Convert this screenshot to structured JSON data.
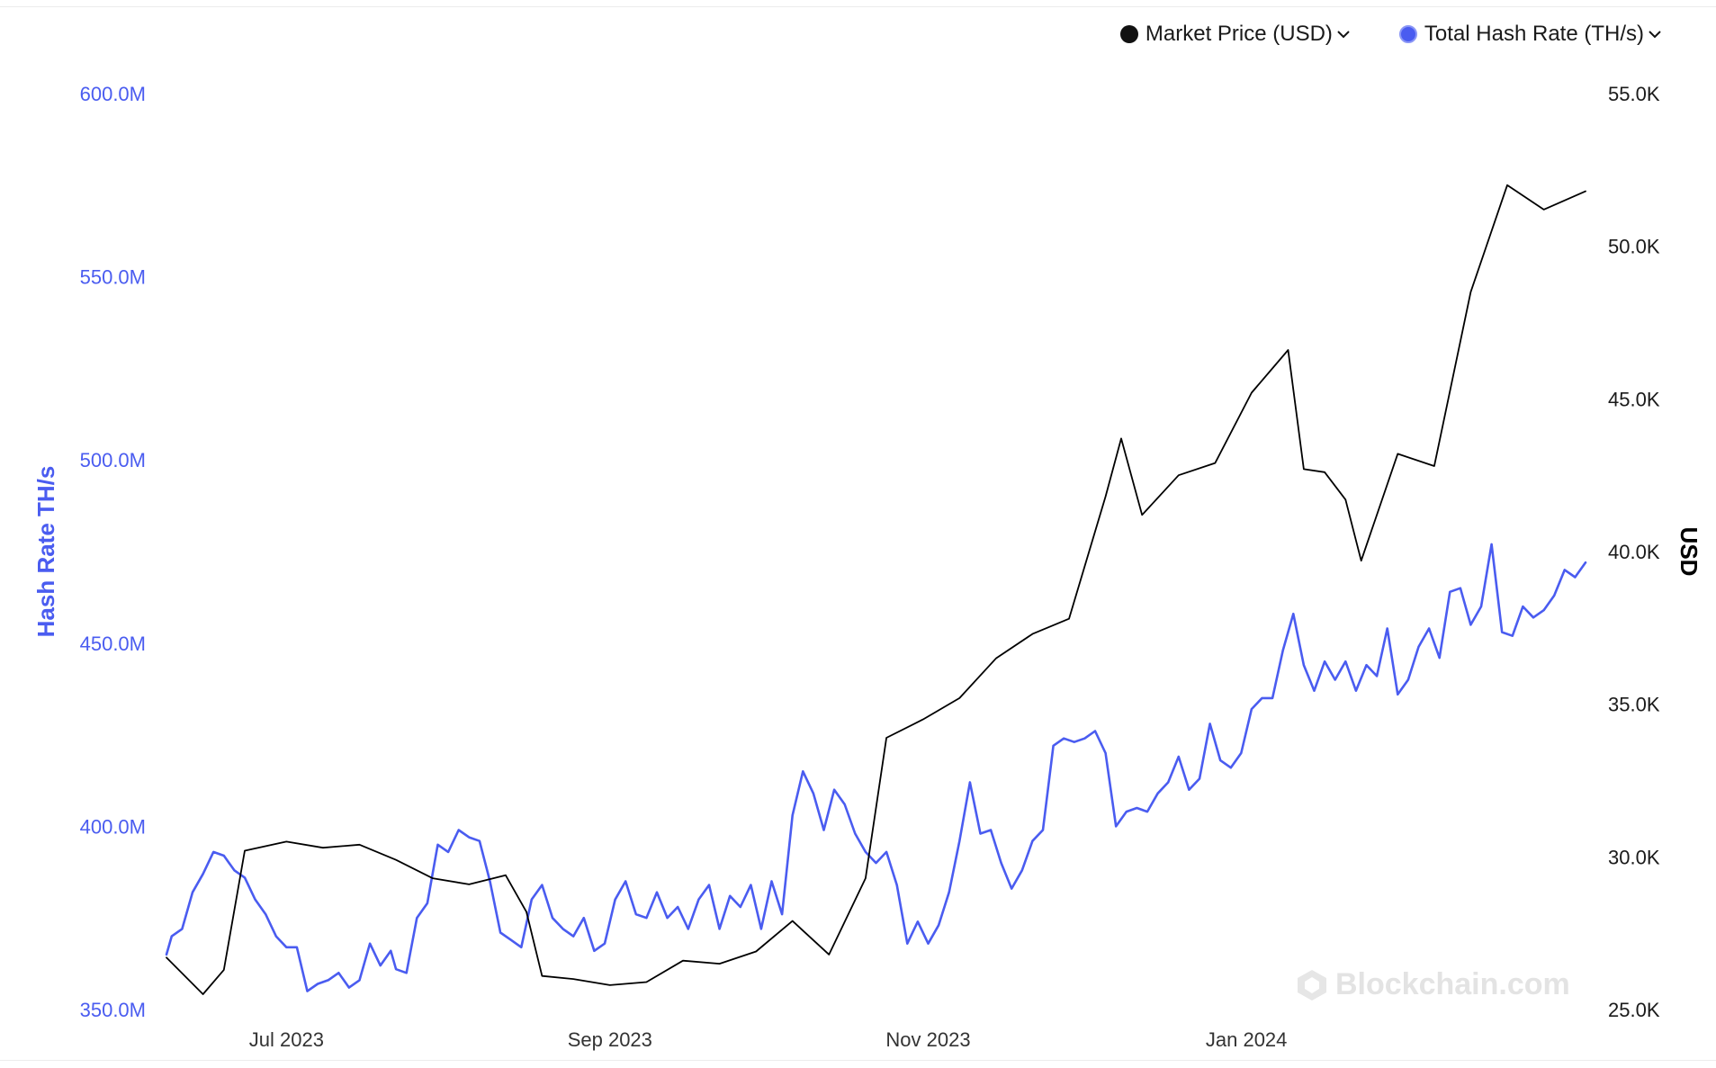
{
  "legend": {
    "items": [
      {
        "label": "Market Price (USD)",
        "chevron": "⌄",
        "color": "#000000",
        "icon": "chevron-down-icon"
      },
      {
        "label": "Total Hash Rate (TH/s)",
        "chevron": "⌄",
        "color": "#4a5cf0",
        "icon": "chevron-down-icon"
      }
    ]
  },
  "watermark": {
    "text": "Blockchain.com",
    "icon": "blockchain-logo-icon"
  },
  "colors": {
    "hash": "#4a5cf0",
    "price": "#000000",
    "axis_left": "#4a5cf0",
    "axis_right": "#1a1a1a"
  },
  "chart_data": {
    "type": "line",
    "ylabel_left": "Hash Rate TH/s",
    "ylabel_right": "USD",
    "x_ticks": [
      "Jul 2023",
      "Sep 2023",
      "Nov 2023",
      "Jan 2024"
    ],
    "x_tick_dates": [
      "2023-07-01",
      "2023-09-01",
      "2023-11-01",
      "2024-01-01"
    ],
    "x_range": [
      "2023-06-08",
      "2024-03-06"
    ],
    "y_left_ticks": [
      "350.0M",
      "400.0M",
      "450.0M",
      "500.0M",
      "550.0M",
      "600.0M"
    ],
    "y_left_range": [
      350000000,
      600000000
    ],
    "y_right_ticks": [
      "25.0K",
      "30.0K",
      "35.0K",
      "40.0K",
      "45.0K",
      "50.0K",
      "55.0K"
    ],
    "y_right_range": [
      25000,
      55000
    ],
    "grid": false,
    "legend_position": "top-right",
    "series": [
      {
        "name": "Total Hash Rate (TH/s)",
        "axis": "left",
        "points": [
          [
            "2023-06-08",
            365000000
          ],
          [
            "2023-06-09",
            370000000
          ],
          [
            "2023-06-11",
            372000000
          ],
          [
            "2023-06-13",
            382000000
          ],
          [
            "2023-06-15",
            387000000
          ],
          [
            "2023-06-17",
            393000000
          ],
          [
            "2023-06-19",
            392000000
          ],
          [
            "2023-06-21",
            388000000
          ],
          [
            "2023-06-23",
            386000000
          ],
          [
            "2023-06-25",
            380000000
          ],
          [
            "2023-06-27",
            376000000
          ],
          [
            "2023-06-29",
            370000000
          ],
          [
            "2023-07-01",
            367000000
          ],
          [
            "2023-07-03",
            367000000
          ],
          [
            "2023-07-05",
            355000000
          ],
          [
            "2023-07-07",
            357000000
          ],
          [
            "2023-07-09",
            358000000
          ],
          [
            "2023-07-11",
            360000000
          ],
          [
            "2023-07-13",
            356000000
          ],
          [
            "2023-07-15",
            358000000
          ],
          [
            "2023-07-17",
            368000000
          ],
          [
            "2023-07-19",
            362000000
          ],
          [
            "2023-07-21",
            366000000
          ],
          [
            "2023-07-22",
            361000000
          ],
          [
            "2023-07-24",
            360000000
          ],
          [
            "2023-07-26",
            375000000
          ],
          [
            "2023-07-28",
            379000000
          ],
          [
            "2023-07-30",
            395000000
          ],
          [
            "2023-08-01",
            393000000
          ],
          [
            "2023-08-03",
            399000000
          ],
          [
            "2023-08-05",
            397000000
          ],
          [
            "2023-08-07",
            396000000
          ],
          [
            "2023-08-09",
            385000000
          ],
          [
            "2023-08-11",
            371000000
          ],
          [
            "2023-08-13",
            369000000
          ],
          [
            "2023-08-15",
            367000000
          ],
          [
            "2023-08-17",
            380000000
          ],
          [
            "2023-08-19",
            384000000
          ],
          [
            "2023-08-21",
            375000000
          ],
          [
            "2023-08-23",
            372000000
          ],
          [
            "2023-08-25",
            370000000
          ],
          [
            "2023-08-27",
            375000000
          ],
          [
            "2023-08-29",
            366000000
          ],
          [
            "2023-08-31",
            368000000
          ],
          [
            "2023-09-02",
            380000000
          ],
          [
            "2023-09-04",
            385000000
          ],
          [
            "2023-09-06",
            376000000
          ],
          [
            "2023-09-08",
            375000000
          ],
          [
            "2023-09-10",
            382000000
          ],
          [
            "2023-09-12",
            375000000
          ],
          [
            "2023-09-14",
            378000000
          ],
          [
            "2023-09-16",
            372000000
          ],
          [
            "2023-09-18",
            380000000
          ],
          [
            "2023-09-20",
            384000000
          ],
          [
            "2023-09-22",
            372000000
          ],
          [
            "2023-09-24",
            381000000
          ],
          [
            "2023-09-26",
            378000000
          ],
          [
            "2023-09-28",
            384000000
          ],
          [
            "2023-09-30",
            372000000
          ],
          [
            "2023-10-02",
            385000000
          ],
          [
            "2023-10-04",
            376000000
          ],
          [
            "2023-10-06",
            403000000
          ],
          [
            "2023-10-08",
            415000000
          ],
          [
            "2023-10-10",
            409000000
          ],
          [
            "2023-10-12",
            399000000
          ],
          [
            "2023-10-14",
            410000000
          ],
          [
            "2023-10-16",
            406000000
          ],
          [
            "2023-10-18",
            398000000
          ],
          [
            "2023-10-20",
            393000000
          ],
          [
            "2023-10-22",
            390000000
          ],
          [
            "2023-10-24",
            393000000
          ],
          [
            "2023-10-26",
            384000000
          ],
          [
            "2023-10-28",
            368000000
          ],
          [
            "2023-10-30",
            374000000
          ],
          [
            "2023-11-01",
            368000000
          ],
          [
            "2023-11-03",
            373000000
          ],
          [
            "2023-11-05",
            382000000
          ],
          [
            "2023-11-07",
            396000000
          ],
          [
            "2023-11-09",
            412000000
          ],
          [
            "2023-11-11",
            398000000
          ],
          [
            "2023-11-13",
            399000000
          ],
          [
            "2023-11-15",
            390000000
          ],
          [
            "2023-11-17",
            383000000
          ],
          [
            "2023-11-19",
            388000000
          ],
          [
            "2023-11-21",
            396000000
          ],
          [
            "2023-11-23",
            399000000
          ],
          [
            "2023-11-25",
            422000000
          ],
          [
            "2023-11-27",
            424000000
          ],
          [
            "2023-11-29",
            423000000
          ],
          [
            "2023-12-01",
            424000000
          ],
          [
            "2023-12-03",
            426000000
          ],
          [
            "2023-12-05",
            420000000
          ],
          [
            "2023-12-07",
            400000000
          ],
          [
            "2023-12-09",
            404000000
          ],
          [
            "2023-12-11",
            405000000
          ],
          [
            "2023-12-13",
            404000000
          ],
          [
            "2023-12-15",
            409000000
          ],
          [
            "2023-12-17",
            412000000
          ],
          [
            "2023-12-19",
            419000000
          ],
          [
            "2023-12-21",
            410000000
          ],
          [
            "2023-12-23",
            413000000
          ],
          [
            "2023-12-25",
            428000000
          ],
          [
            "2023-12-27",
            418000000
          ],
          [
            "2023-12-29",
            416000000
          ],
          [
            "2023-12-31",
            420000000
          ],
          [
            "2024-01-02",
            432000000
          ],
          [
            "2024-01-04",
            435000000
          ],
          [
            "2024-01-06",
            435000000
          ],
          [
            "2024-01-08",
            448000000
          ],
          [
            "2024-01-10",
            458000000
          ],
          [
            "2024-01-12",
            444000000
          ],
          [
            "2024-01-14",
            437000000
          ],
          [
            "2024-01-16",
            445000000
          ],
          [
            "2024-01-18",
            440000000
          ],
          [
            "2024-01-20",
            445000000
          ],
          [
            "2024-01-22",
            437000000
          ],
          [
            "2024-01-24",
            444000000
          ],
          [
            "2024-01-26",
            441000000
          ],
          [
            "2024-01-28",
            454000000
          ],
          [
            "2024-01-30",
            436000000
          ],
          [
            "2024-02-01",
            440000000
          ],
          [
            "2024-02-03",
            449000000
          ],
          [
            "2024-02-05",
            454000000
          ],
          [
            "2024-02-07",
            446000000
          ],
          [
            "2024-02-09",
            464000000
          ],
          [
            "2024-02-11",
            465000000
          ],
          [
            "2024-02-13",
            455000000
          ],
          [
            "2024-02-15",
            460000000
          ],
          [
            "2024-02-17",
            477000000
          ],
          [
            "2024-02-19",
            453000000
          ],
          [
            "2024-02-21",
            452000000
          ],
          [
            "2024-02-23",
            460000000
          ],
          [
            "2024-02-25",
            457000000
          ],
          [
            "2024-02-27",
            459000000
          ],
          [
            "2024-02-29",
            463000000
          ],
          [
            "2024-03-02",
            470000000
          ],
          [
            "2024-03-04",
            468000000
          ],
          [
            "2024-03-06",
            472000000
          ]
        ]
      },
      {
        "name": "Market Price (USD)",
        "axis": "right",
        "points": [
          [
            "2023-06-08",
            26700
          ],
          [
            "2023-06-15",
            25500
          ],
          [
            "2023-06-19",
            26300
          ],
          [
            "2023-06-23",
            30200
          ],
          [
            "2023-07-01",
            30500
          ],
          [
            "2023-07-08",
            30300
          ],
          [
            "2023-07-15",
            30400
          ],
          [
            "2023-07-22",
            29900
          ],
          [
            "2023-07-29",
            29300
          ],
          [
            "2023-08-05",
            29100
          ],
          [
            "2023-08-12",
            29400
          ],
          [
            "2023-08-16",
            28200
          ],
          [
            "2023-08-19",
            26100
          ],
          [
            "2023-08-25",
            26000
          ],
          [
            "2023-09-01",
            25800
          ],
          [
            "2023-09-08",
            25900
          ],
          [
            "2023-09-15",
            26600
          ],
          [
            "2023-09-22",
            26500
          ],
          [
            "2023-09-29",
            26900
          ],
          [
            "2023-10-06",
            27900
          ],
          [
            "2023-10-13",
            26800
          ],
          [
            "2023-10-20",
            29300
          ],
          [
            "2023-10-24",
            33900
          ],
          [
            "2023-10-31",
            34500
          ],
          [
            "2023-11-07",
            35200
          ],
          [
            "2023-11-14",
            36500
          ],
          [
            "2023-11-21",
            37300
          ],
          [
            "2023-11-28",
            37800
          ],
          [
            "2023-12-05",
            41800
          ],
          [
            "2023-12-08",
            43700
          ],
          [
            "2023-12-12",
            41200
          ],
          [
            "2023-12-19",
            42500
          ],
          [
            "2023-12-26",
            42900
          ],
          [
            "2024-01-02",
            45200
          ],
          [
            "2024-01-09",
            46600
          ],
          [
            "2024-01-12",
            42700
          ],
          [
            "2024-01-16",
            42600
          ],
          [
            "2024-01-20",
            41700
          ],
          [
            "2024-01-23",
            39700
          ],
          [
            "2024-01-30",
            43200
          ],
          [
            "2024-02-06",
            42800
          ],
          [
            "2024-02-13",
            48500
          ],
          [
            "2024-02-20",
            52000
          ],
          [
            "2024-02-27",
            51200
          ],
          [
            "2024-03-06",
            51800
          ]
        ]
      }
    ]
  }
}
